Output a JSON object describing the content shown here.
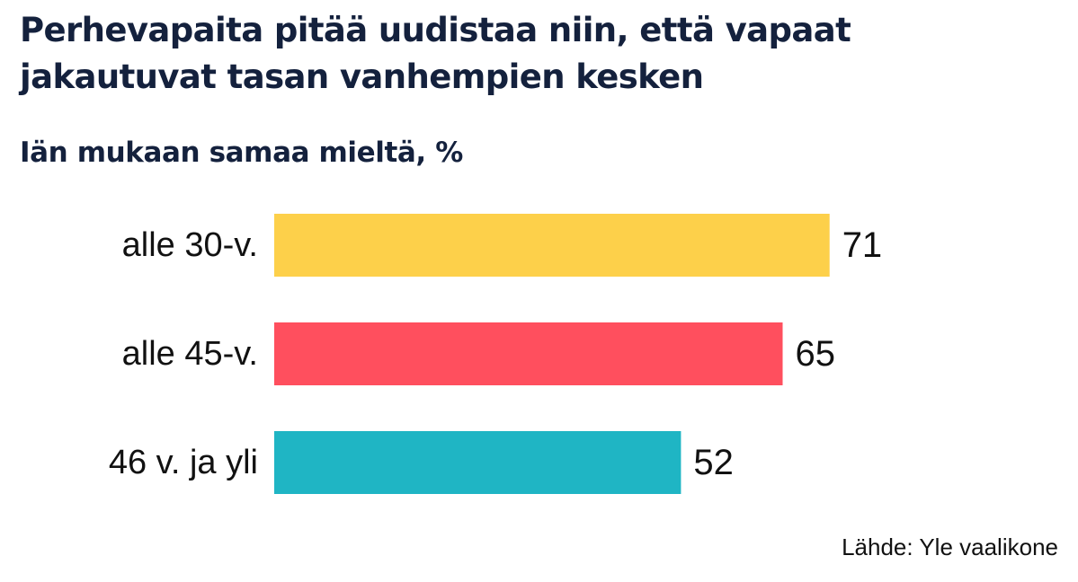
{
  "chart_data": {
    "type": "bar",
    "orientation": "horizontal",
    "title": "Perhevapaita pitää uudistaa niin, että vapaat jakautuvat tasan vanhempien kesken",
    "subtitle": "Iän mukaan samaa mieltä, %",
    "categories": [
      "alle 30-v.",
      "alle 45-v.",
      "46 v. ja yli"
    ],
    "values": [
      71,
      65,
      52
    ],
    "colors": [
      "#fdd04a",
      "#ff4f5e",
      "#1fb5c4"
    ],
    "xlim": [
      0,
      100
    ],
    "grid": false,
    "legend": "none",
    "source": "Lähde: Yle vaalikone"
  }
}
